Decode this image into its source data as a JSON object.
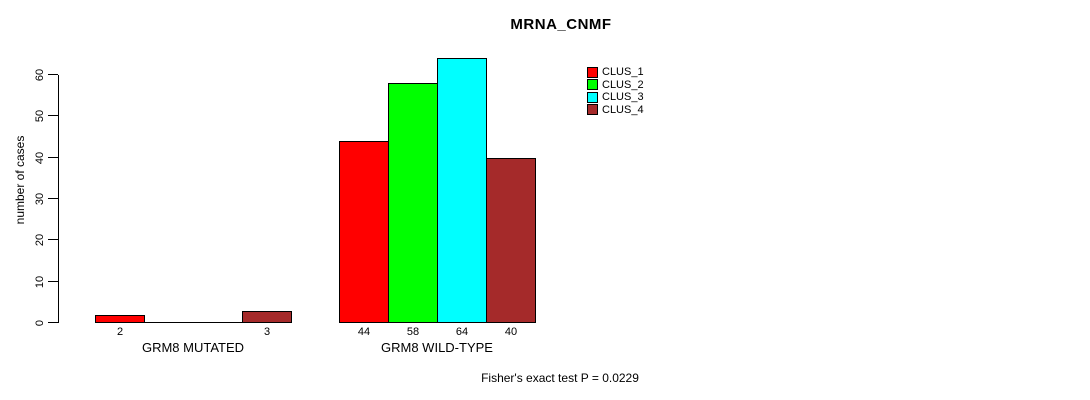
{
  "chart_data": {
    "type": "bar",
    "title": "MRNA_CNMF",
    "ylabel": "number of cases",
    "xlabel": "",
    "categories": [
      "GRM8 MUTATED",
      "GRM8 WILD-TYPE"
    ],
    "series": [
      {
        "name": "CLUS_1",
        "color": "#ff0000",
        "values": [
          2,
          44
        ]
      },
      {
        "name": "CLUS_2",
        "color": "#00ff00",
        "values": [
          0,
          58
        ]
      },
      {
        "name": "CLUS_3",
        "color": "#00ffff",
        "values": [
          0,
          64
        ]
      },
      {
        "name": "CLUS_4",
        "color": "#a52a2a",
        "values": [
          3,
          40
        ]
      }
    ],
    "yticks": [
      0,
      10,
      20,
      30,
      40,
      50,
      60
    ],
    "ylim": [
      0,
      65
    ],
    "grid": false,
    "legend_position": "top-right",
    "bar_value_labels": true,
    "annotation": "Fisher's exact test P = 0.0229"
  },
  "colors": {
    "background": "#ffffff",
    "axis": "#000000",
    "bar_border": "#000000"
  }
}
